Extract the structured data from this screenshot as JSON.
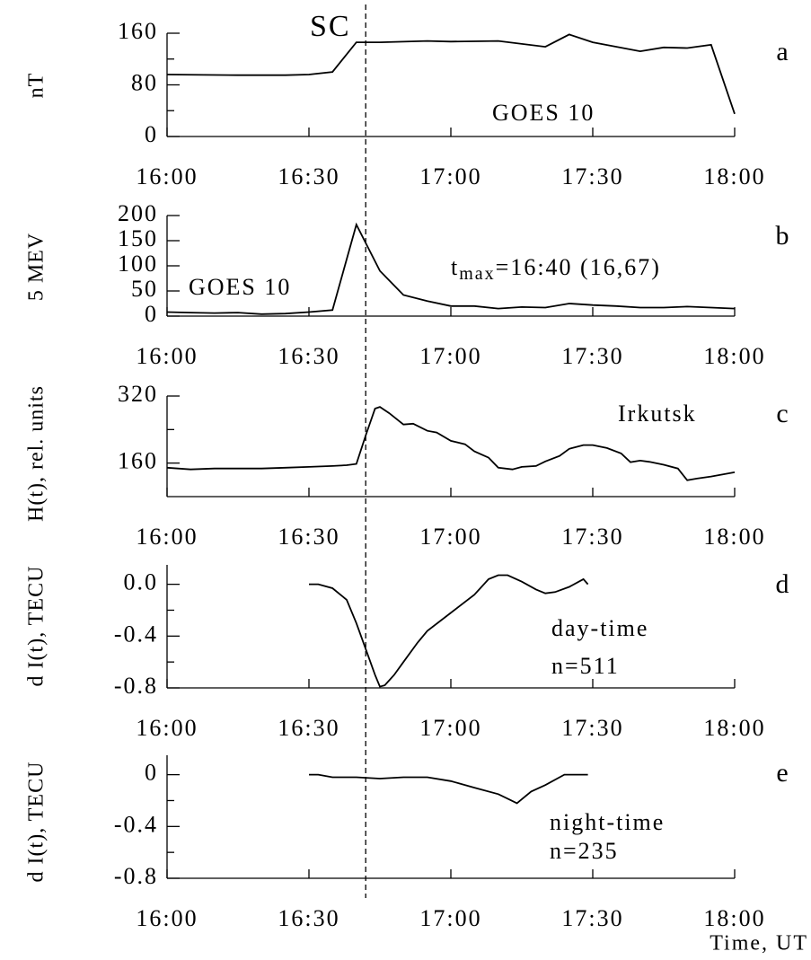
{
  "marker": {
    "label": "SC",
    "x": 16.7
  },
  "x_axis_label": "Time, UT",
  "chart_data": [
    {
      "type": "line",
      "ylabel": "nT",
      "panel_label": "a",
      "annotations": [
        "GOES 10"
      ],
      "xlim": [
        16,
        18
      ],
      "xticks": [
        {
          "value": 16,
          "label": "16:00"
        },
        {
          "value": 16.5,
          "label": "16:30"
        },
        {
          "value": 17,
          "label": "17:00"
        },
        {
          "value": 17.5,
          "label": "17:30"
        },
        {
          "value": 18,
          "label": "18:00"
        }
      ],
      "ylim": [
        0,
        160
      ],
      "yticks": [
        0,
        80,
        160
      ],
      "minor_yticks": [
        40,
        120
      ],
      "x": [
        16,
        16.25,
        16.417,
        16.5,
        16.583,
        16.667,
        16.75,
        16.917,
        17,
        17.167,
        17.333,
        17.417,
        17.5,
        17.667,
        17.75,
        17.833,
        17.917,
        18
      ],
      "series": [
        {
          "color": "#000000",
          "values": [
            96,
            95,
            95,
            96,
            100,
            146,
            146,
            148,
            147,
            148,
            139,
            158,
            146,
            132,
            138,
            137,
            142,
            35
          ]
        }
      ]
    },
    {
      "type": "line",
      "ylabel": "5 MEV",
      "panel_label": "b",
      "annotations": [
        "GOES 10"
      ],
      "tmax_label": {
        "t": "t",
        "sub": "max",
        "rest": "=16:40 (16,67)"
      },
      "xlim": [
        16,
        18
      ],
      "xticks": [
        {
          "value": 16,
          "label": "16:00"
        },
        {
          "value": 16.5,
          "label": "16:30"
        },
        {
          "value": 17,
          "label": "17:00"
        },
        {
          "value": 17.5,
          "label": "17:30"
        },
        {
          "value": 18,
          "label": "18:00"
        }
      ],
      "ylim": [
        0,
        200
      ],
      "yticks": [
        0,
        50,
        100,
        150,
        200
      ],
      "minor_yticks": [],
      "x": [
        16,
        16.083,
        16.167,
        16.25,
        16.333,
        16.417,
        16.5,
        16.583,
        16.667,
        16.75,
        16.833,
        16.917,
        17,
        17.083,
        17.167,
        17.25,
        17.333,
        17.417,
        17.5,
        17.583,
        17.667,
        17.75,
        17.833,
        17.917,
        18
      ],
      "series": [
        {
          "color": "#000000",
          "values": [
            8,
            7,
            6,
            7,
            4,
            5,
            8,
            12,
            182,
            90,
            42,
            30,
            20,
            20,
            15,
            18,
            17,
            25,
            22,
            20,
            17,
            17,
            19,
            17,
            15
          ]
        }
      ]
    },
    {
      "type": "line",
      "ylabel": "H(t), rel. units",
      "panel_label": "c",
      "annotations": [
        "Irkutsk"
      ],
      "xlim": [
        16,
        18
      ],
      "xticks": [
        {
          "value": 16,
          "label": "16:00"
        },
        {
          "value": 16.5,
          "label": "16:30"
        },
        {
          "value": 17,
          "label": "17:00"
        },
        {
          "value": 17.5,
          "label": "17:30"
        },
        {
          "value": 18,
          "label": "18:00"
        }
      ],
      "ylim": [
        80,
        320
      ],
      "yticks": [
        160,
        320
      ],
      "minor_yticks": [
        240
      ],
      "x": [
        16,
        16.083,
        16.167,
        16.25,
        16.333,
        16.417,
        16.5,
        16.583,
        16.633,
        16.667,
        16.7,
        16.733,
        16.75,
        16.783,
        16.833,
        16.867,
        16.917,
        16.95,
        17,
        17.05,
        17.083,
        17.133,
        17.167,
        17.217,
        17.25,
        17.3,
        17.333,
        17.383,
        17.417,
        17.467,
        17.5,
        17.55,
        17.6,
        17.633,
        17.667,
        17.7,
        17.75,
        17.8,
        17.833,
        17.867,
        17.917,
        18
      ],
      "series": [
        {
          "color": "#000000",
          "values": [
            149,
            145,
            147,
            147,
            147,
            149,
            151,
            153,
            155,
            158,
            226,
            290,
            294,
            279,
            252,
            254,
            237,
            233,
            213,
            205,
            188,
            173,
            149,
            145,
            151,
            153,
            164,
            177,
            194,
            203,
            203,
            196,
            183,
            162,
            166,
            163,
            156,
            147,
            119,
            123,
            128,
            138
          ]
        }
      ]
    },
    {
      "type": "line",
      "ylabel": "d I(t), TECU",
      "panel_label": "d",
      "annotations": [
        "day-time",
        "n=511"
      ],
      "xlim": [
        16,
        18
      ],
      "xticks": [
        {
          "value": 16,
          "label": "16:00"
        },
        {
          "value": 16.5,
          "label": "16:30"
        },
        {
          "value": 17,
          "label": "17:00"
        },
        {
          "value": 17.5,
          "label": "17:30"
        },
        {
          "value": 18,
          "label": "18:00"
        }
      ],
      "ylim": [
        -0.8,
        0.15
      ],
      "yticks": [
        {
          "value": 0,
          "label": "0.0"
        },
        -0.4,
        -0.8
      ],
      "minor_yticks": [
        -0.2,
        -0.6
      ],
      "x": [
        16.5,
        16.533,
        16.583,
        16.633,
        16.667,
        16.7,
        16.733,
        16.75,
        16.767,
        16.8,
        16.833,
        16.883,
        16.917,
        17,
        17.083,
        17.133,
        17.167,
        17.2,
        17.25,
        17.3,
        17.333,
        17.367,
        17.417,
        17.467,
        17.483
      ],
      "series": [
        {
          "color": "#000000",
          "values": [
            0,
            0,
            -0.03,
            -0.12,
            -0.3,
            -0.5,
            -0.7,
            -0.79,
            -0.78,
            -0.7,
            -0.6,
            -0.45,
            -0.36,
            -0.22,
            -0.08,
            0.04,
            0.07,
            0.07,
            0.02,
            -0.04,
            -0.07,
            -0.06,
            -0.02,
            0.04,
            0
          ]
        }
      ]
    },
    {
      "type": "line",
      "ylabel": "d I(t), TECU",
      "panel_label": "e",
      "annotations": [
        "night-time",
        "n=235"
      ],
      "xlim": [
        16,
        18
      ],
      "xticks": [
        {
          "value": 16,
          "label": "16:00"
        },
        {
          "value": 16.5,
          "label": "16:30"
        },
        {
          "value": 17,
          "label": "17:00"
        },
        {
          "value": 17.5,
          "label": "17:30"
        },
        {
          "value": 18,
          "label": "18:00"
        }
      ],
      "ylim": [
        -0.8,
        0.15
      ],
      "yticks": [
        0,
        -0.4,
        -0.8
      ],
      "minor_yticks": [
        -0.2,
        -0.6
      ],
      "x": [
        16.5,
        16.533,
        16.583,
        16.667,
        16.75,
        16.833,
        16.917,
        17,
        17.083,
        17.167,
        17.233,
        17.283,
        17.333,
        17.4,
        17.45,
        17.483
      ],
      "series": [
        {
          "color": "#000000",
          "values": [
            0,
            0,
            -0.02,
            -0.02,
            -0.03,
            -0.02,
            -0.02,
            -0.05,
            -0.1,
            -0.15,
            -0.22,
            -0.13,
            -0.08,
            0,
            0,
            0
          ]
        }
      ]
    }
  ]
}
